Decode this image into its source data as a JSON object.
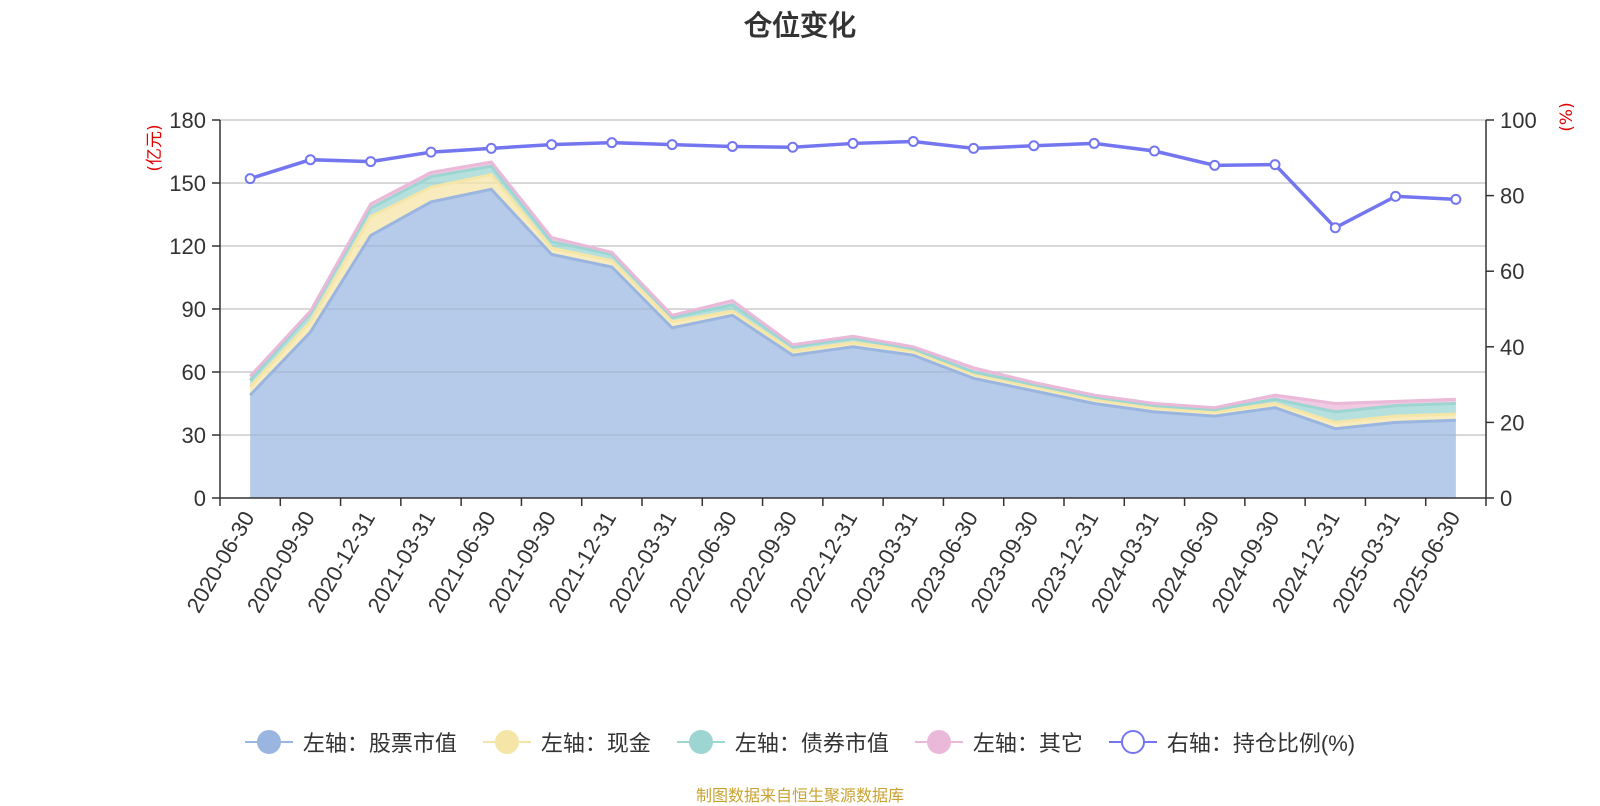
{
  "chart_data": {
    "type": "area",
    "title": "仓位变化",
    "left_axis_unit": "(亿元)",
    "right_axis_unit": "(%)",
    "categories": [
      "2020-06-30",
      "2020-09-30",
      "2020-12-31",
      "2021-03-31",
      "2021-06-30",
      "2021-09-30",
      "2021-12-31",
      "2022-03-31",
      "2022-06-30",
      "2022-09-30",
      "2022-12-31",
      "2023-03-31",
      "2023-06-30",
      "2023-09-30",
      "2023-12-31",
      "2024-03-31",
      "2024-06-30",
      "2024-09-30",
      "2024-12-31",
      "2025-03-31",
      "2025-06-30"
    ],
    "ylim_left": [
      0,
      180
    ],
    "yticks_left": [
      0,
      30,
      60,
      90,
      120,
      150,
      180
    ],
    "ylim_right": [
      0,
      100
    ],
    "yticks_right": [
      0,
      20,
      40,
      60,
      80,
      100
    ],
    "grid": true,
    "stacked": true,
    "series": [
      {
        "name": "左轴：股票市值",
        "axis": "left",
        "color": "#9ab6e0",
        "values": [
          49,
          79,
          125,
          141,
          147,
          116,
          110,
          81,
          87,
          68,
          72,
          68,
          57,
          51,
          45,
          41,
          39,
          43,
          33,
          36,
          37
        ]
      },
      {
        "name": "左轴：现金",
        "axis": "left",
        "color": "#f5e6a8",
        "values": [
          4,
          5,
          9,
          7,
          7,
          3,
          3,
          3,
          2,
          2,
          2,
          2,
          2,
          2,
          2,
          2,
          2,
          2,
          3,
          3,
          3
        ]
      },
      {
        "name": "左轴：债券市值",
        "axis": "left",
        "color": "#9dd5d2",
        "values": [
          3,
          4,
          4,
          5,
          4,
          3,
          3,
          2,
          3,
          2,
          2,
          1,
          1,
          1,
          1,
          1,
          1,
          2,
          5,
          5,
          5
        ]
      },
      {
        "name": "左轴：其它",
        "axis": "left",
        "color": "#eab8d8",
        "values": [
          2,
          1,
          2,
          2,
          2,
          2,
          1,
          1,
          2,
          1,
          1,
          1,
          2,
          1,
          1,
          1,
          1,
          2,
          4,
          2,
          2
        ]
      },
      {
        "name": "右轴：持仓比例(%)",
        "axis": "right",
        "color": "#7476f0",
        "values": [
          84.5,
          89.5,
          89,
          91.5,
          92.5,
          93.5,
          94,
          93.5,
          93,
          92.8,
          93.8,
          94.3,
          92.5,
          93.2,
          93.8,
          91.8,
          88,
          88.2,
          71.5,
          79.8,
          79
        ]
      }
    ],
    "source_note": "制图数据来自恒生聚源数据库"
  }
}
